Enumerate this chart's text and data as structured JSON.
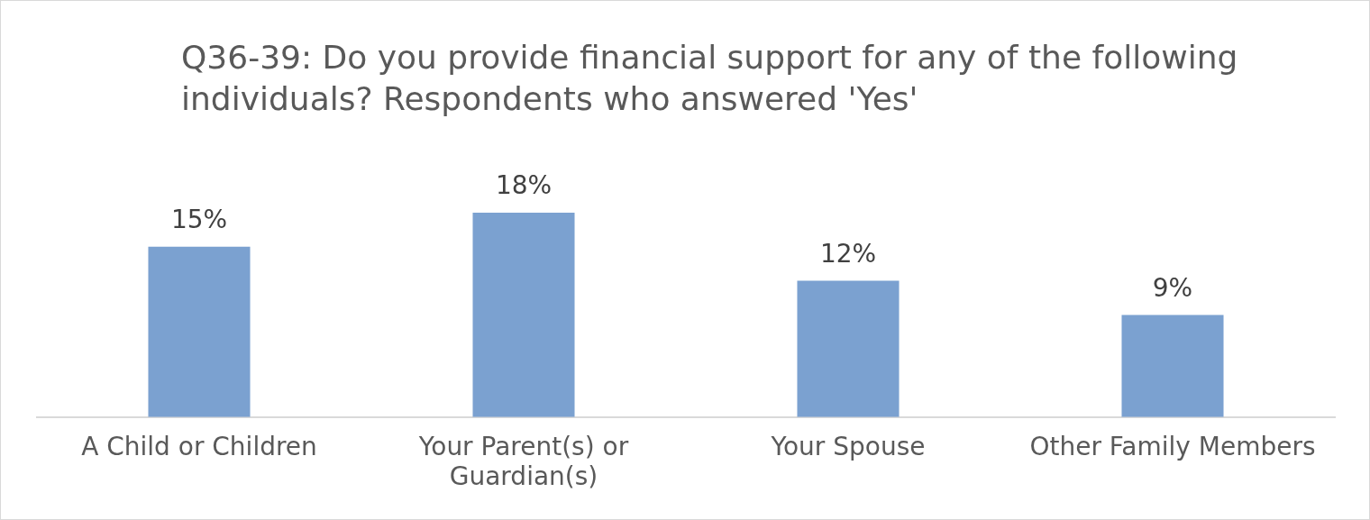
{
  "chart_data": {
    "type": "bar",
    "title": "Q36-39: Do you provide financial support for any of the following individuals? Respondents who answered 'Yes'",
    "categories": [
      "A Child or Children",
      "Your Parent(s) or Guardian(s)",
      "Your Spouse",
      "Other Family Members"
    ],
    "values": [
      15,
      18,
      12,
      9
    ],
    "color": "#7ba1d0",
    "value_labels": [
      "15%",
      "18%",
      "12%",
      "9%"
    ],
    "grid": false,
    "legend": false
  }
}
